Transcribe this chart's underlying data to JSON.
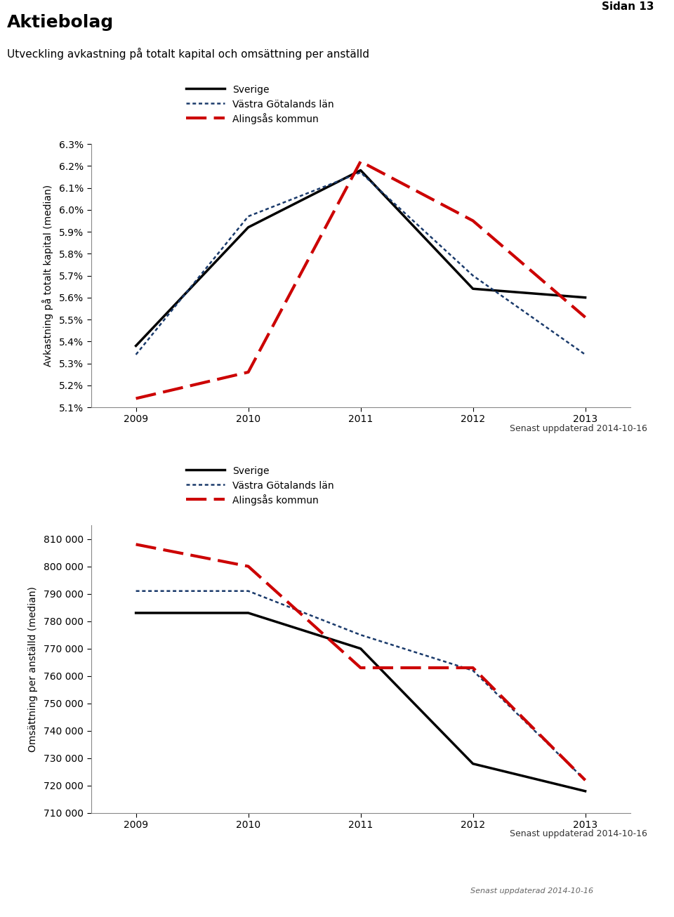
{
  "title_main": "Aktiebolag",
  "subtitle": "Utveckling avkastning på totalt kapital och omsättning per anställd",
  "page_label": "Sidan 13",
  "updated_label": "Senast uppdaterad 2014-10-16",
  "legend_labels": [
    "Sverige",
    "Västra Götalands län",
    "Alingsås kommun"
  ],
  "years": [
    2009,
    2010,
    2011,
    2012,
    2013
  ],
  "chart1": {
    "ylabel": "Avkastning på totalt kapital (median)",
    "ylim": [
      0.051,
      0.063
    ],
    "yticks": [
      0.051,
      0.052,
      0.053,
      0.054,
      0.055,
      0.056,
      0.057,
      0.058,
      0.059,
      0.06,
      0.061,
      0.062,
      0.063
    ],
    "sverige": [
      0.0538,
      0.0592,
      0.0618,
      0.0564,
      0.056
    ],
    "vastragotaland": [
      0.0534,
      0.0597,
      0.0617,
      0.057,
      0.0534
    ],
    "alingsas": [
      0.0514,
      0.0526,
      0.0622,
      0.0595,
      0.0551
    ]
  },
  "chart2": {
    "ylabel": "Omsättning per anställd (median)",
    "ylim": [
      710000,
      815000
    ],
    "yticks": [
      710000,
      720000,
      730000,
      740000,
      750000,
      760000,
      770000,
      780000,
      790000,
      800000,
      810000
    ],
    "sverige": [
      783000,
      783000,
      770000,
      728000,
      718000
    ],
    "vastragotaland": [
      791000,
      791000,
      775000,
      762000,
      722000
    ],
    "alingsas": [
      808000,
      800000,
      763000,
      763000,
      722000
    ]
  },
  "color_sverige": "#000000",
  "color_vg": "#1a3a6b",
  "color_alingsas": "#cc0000"
}
